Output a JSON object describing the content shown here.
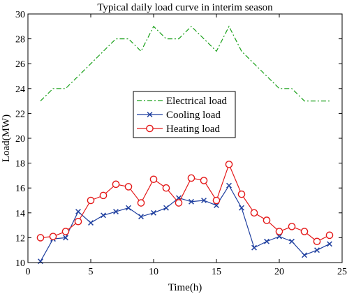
{
  "chart_data": {
    "type": "line",
    "title": "Typical daily load curve in interim season",
    "xlabel": "Time(h)",
    "ylabel": "Load(MW)",
    "xlim": [
      0,
      25
    ],
    "ylim": [
      10,
      30
    ],
    "xticks": [
      0,
      5,
      10,
      15,
      20,
      25
    ],
    "yticks": [
      10,
      12,
      14,
      16,
      18,
      20,
      22,
      24,
      26,
      28,
      30
    ],
    "grid": false,
    "legend_position": "center",
    "x": [
      1,
      2,
      3,
      4,
      5,
      6,
      7,
      8,
      9,
      10,
      11,
      12,
      13,
      14,
      15,
      16,
      17,
      18,
      19,
      20,
      21,
      22,
      23,
      24
    ],
    "series": [
      {
        "name": "Electrical load",
        "color": "#1aa01a",
        "line_style": "dash-dot",
        "marker": "none",
        "values": [
          23,
          24,
          24,
          25,
          26,
          27,
          28,
          28,
          27,
          29,
          28,
          28,
          29,
          28,
          27,
          29,
          27,
          26,
          25,
          24,
          24,
          23,
          23,
          23
        ]
      },
      {
        "name": "Cooling load",
        "color": "#1f3f9f",
        "line_style": "solid",
        "marker": "x",
        "values": [
          10.1,
          11.9,
          12.0,
          14.1,
          13.2,
          13.8,
          14.1,
          14.4,
          13.7,
          14.0,
          14.4,
          15.2,
          14.9,
          15.0,
          14.6,
          16.2,
          14.4,
          11.2,
          11.7,
          12.1,
          11.7,
          10.6,
          11.0,
          11.5
        ]
      },
      {
        "name": "Heating load",
        "color": "#e41a1a",
        "line_style": "solid",
        "marker": "circle",
        "values": [
          12.0,
          12.1,
          12.5,
          13.3,
          15.0,
          15.4,
          16.3,
          16.1,
          14.8,
          16.7,
          16.0,
          14.8,
          16.8,
          16.6,
          15.0,
          17.9,
          15.5,
          14.0,
          13.4,
          12.5,
          12.9,
          12.5,
          11.7,
          12.2
        ]
      }
    ]
  }
}
